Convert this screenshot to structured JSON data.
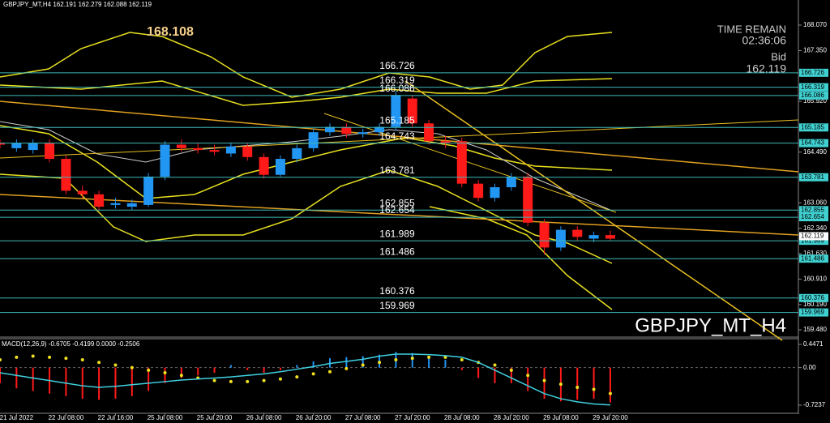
{
  "header": {
    "symbol_info": "GBPJPY_MT,H4  162.191 162.279 162.088 162.119"
  },
  "time_remain": {
    "label": "TIME REMAIN",
    "value": "02:36:06"
  },
  "bid": {
    "label": "Bid",
    "value": "162.119"
  },
  "watermark": "GBPJPY_MT_H4",
  "high_marker": "168.108",
  "price_axis": {
    "ticks": [
      {
        "value": 168.07,
        "label": "168.070"
      },
      {
        "value": 167.35,
        "label": "167.350"
      },
      {
        "value": 165.92,
        "label": "165.920"
      },
      {
        "value": 164.49,
        "label": "164.490"
      },
      {
        "value": 163.06,
        "label": "163.060"
      },
      {
        "value": 162.34,
        "label": "162.340"
      },
      {
        "value": 161.63,
        "label": "161.630"
      },
      {
        "value": 160.91,
        "label": "160.910"
      },
      {
        "value": 160.19,
        "label": "160.190"
      },
      {
        "value": 159.48,
        "label": "159.480"
      }
    ]
  },
  "levels": [
    166.726,
    166.319,
    166.086,
    165.185,
    164.743,
    163.781,
    162.855,
    162.654,
    161.989,
    161.486,
    160.376,
    159.969
  ],
  "candles": [
    {
      "open": 164.75,
      "high": 164.85,
      "low": 164.6,
      "close": 164.7
    },
    {
      "open": 164.6,
      "high": 164.85,
      "low": 164.5,
      "close": 164.75
    },
    {
      "open": 164.55,
      "high": 164.85,
      "low": 164.45,
      "close": 164.75
    },
    {
      "open": 164.75,
      "high": 164.85,
      "low": 164.2,
      "close": 164.3
    },
    {
      "open": 164.3,
      "high": 164.4,
      "low": 163.3,
      "close": 163.4
    },
    {
      "open": 163.4,
      "high": 163.55,
      "low": 163.2,
      "close": 163.3
    },
    {
      "open": 163.3,
      "high": 163.4,
      "low": 162.85,
      "close": 162.95
    },
    {
      "open": 163.0,
      "high": 163.2,
      "low": 162.9,
      "close": 163.05
    },
    {
      "open": 162.95,
      "high": 163.15,
      "low": 162.85,
      "close": 163.05
    },
    {
      "open": 163.0,
      "high": 163.9,
      "low": 162.95,
      "close": 163.8
    },
    {
      "open": 163.8,
      "high": 164.8,
      "low": 163.7,
      "close": 164.7
    },
    {
      "open": 164.7,
      "high": 164.85,
      "low": 164.5,
      "close": 164.6
    },
    {
      "open": 164.6,
      "high": 164.75,
      "low": 164.45,
      "close": 164.55
    },
    {
      "open": 164.55,
      "high": 164.7,
      "low": 164.4,
      "close": 164.5
    },
    {
      "open": 164.45,
      "high": 164.75,
      "low": 164.35,
      "close": 164.65
    },
    {
      "open": 164.65,
      "high": 164.75,
      "low": 164.25,
      "close": 164.35
    },
    {
      "open": 164.35,
      "high": 164.45,
      "low": 163.75,
      "close": 163.85
    },
    {
      "open": 163.85,
      "high": 164.4,
      "low": 163.8,
      "close": 164.3
    },
    {
      "open": 164.3,
      "high": 164.7,
      "low": 164.2,
      "close": 164.6
    },
    {
      "open": 164.6,
      "high": 165.15,
      "low": 164.5,
      "close": 165.05
    },
    {
      "open": 165.05,
      "high": 165.3,
      "low": 164.95,
      "close": 165.2
    },
    {
      "open": 165.2,
      "high": 165.3,
      "low": 164.9,
      "close": 165.0
    },
    {
      "open": 165.0,
      "high": 165.15,
      "low": 164.9,
      "close": 165.05
    },
    {
      "open": 165.05,
      "high": 165.3,
      "low": 164.95,
      "close": 165.2
    },
    {
      "open": 165.2,
      "high": 166.2,
      "low": 165.1,
      "close": 166.1
    },
    {
      "open": 166.0,
      "high": 166.1,
      "low": 165.2,
      "close": 165.3
    },
    {
      "open": 165.3,
      "high": 165.4,
      "low": 164.7,
      "close": 164.8
    },
    {
      "open": 164.8,
      "high": 164.95,
      "low": 164.6,
      "close": 164.75
    },
    {
      "open": 164.8,
      "high": 164.9,
      "low": 163.5,
      "close": 163.6
    },
    {
      "open": 163.6,
      "high": 163.7,
      "low": 163.1,
      "close": 163.2
    },
    {
      "open": 163.2,
      "high": 163.6,
      "low": 163.1,
      "close": 163.5
    },
    {
      "open": 163.5,
      "high": 163.9,
      "low": 163.4,
      "close": 163.8
    },
    {
      "open": 163.8,
      "high": 163.9,
      "low": 162.4,
      "close": 162.5
    },
    {
      "open": 162.5,
      "high": 162.6,
      "low": 161.6,
      "close": 161.8
    },
    {
      "open": 161.8,
      "high": 162.4,
      "low": 161.7,
      "close": 162.3
    },
    {
      "open": 162.3,
      "high": 162.4,
      "low": 162.0,
      "close": 162.1
    },
    {
      "open": 162.05,
      "high": 162.25,
      "low": 161.95,
      "close": 162.15
    },
    {
      "open": 162.15,
      "high": 162.28,
      "low": 162.0,
      "close": 162.05
    }
  ],
  "time_axis": [
    "21 Jul 2022",
    "22 Jul 08:00",
    "22 Jul 16:00",
    "25 Jul 08:00",
    "25 Jul 20:00",
    "26 Jul 08:00",
    "26 Jul 20:00",
    "27 Jul 08:00",
    "27 Jul 20:00",
    "28 Jul 08:00",
    "28 Jul 20:00",
    "29 Jul 08:00",
    "29 Jul 20:00"
  ],
  "macd": {
    "label": "MACD(12,26,9) -0.6705 -0.4199 0.0000 -0.2506",
    "ticks": [
      0.4471,
      {
        "value": 0,
        "label": "0.00"
      },
      -0.7237
    ],
    "histogram": [
      -0.3,
      -0.4,
      -0.45,
      -0.5,
      -0.55,
      -0.6,
      -0.62,
      -0.6,
      -0.55,
      -0.45,
      -0.3,
      -0.2,
      -0.15,
      -0.1,
      0.05,
      -0.05,
      -0.1,
      -0.05,
      0.05,
      0.12,
      0.18,
      0.2,
      0.22,
      0.25,
      0.3,
      0.28,
      0.2,
      0.15,
      -0.05,
      -0.2,
      -0.3,
      -0.3,
      -0.45,
      -0.6,
      -0.65,
      -0.62,
      -0.6,
      -0.67
    ],
    "signal": [
      0.15,
      0.2,
      0.22,
      0.2,
      0.18,
      0.15,
      0.1,
      0.05,
      0,
      -0.05,
      -0.1,
      -0.15,
      -0.2,
      -0.25,
      -0.27,
      -0.27,
      -0.25,
      -0.22,
      -0.18,
      -0.12,
      -0.08,
      -0.02,
      0.05,
      0.1,
      0.15,
      0.18,
      0.2,
      0.2,
      0.15,
      0.1,
      0.05,
      -0.05,
      -0.15,
      -0.25,
      -0.32,
      -0.38,
      -0.42,
      -0.5
    ],
    "main": [
      -0.1,
      -0.15,
      -0.2,
      -0.25,
      -0.3,
      -0.35,
      -0.38,
      -0.36,
      -0.33,
      -0.3,
      -0.27,
      -0.24,
      -0.22,
      -0.2,
      -0.18,
      -0.15,
      -0.12,
      -0.08,
      -0.03,
      0.02,
      0.08,
      0.12,
      0.16,
      0.22,
      0.26,
      0.26,
      0.25,
      0.23,
      0.2,
      0.1,
      -0.05,
      -0.2,
      -0.35,
      -0.5,
      -0.6,
      -0.66,
      -0.7,
      -0.72
    ]
  }
}
